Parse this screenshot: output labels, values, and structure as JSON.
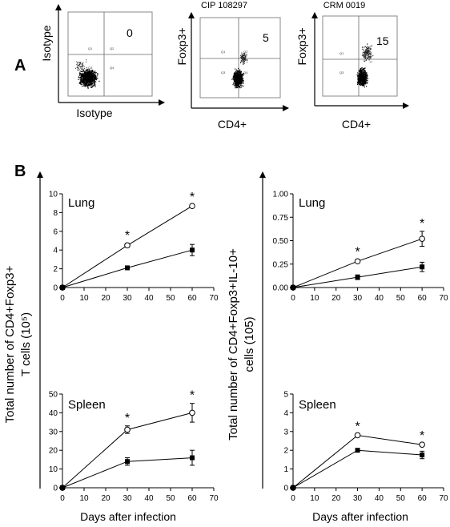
{
  "panel_a": {
    "letter": "A",
    "plots": [
      {
        "title": "",
        "xlabel": "Isotype",
        "ylabel": "Isotype",
        "value": "0",
        "quadrants": [
          "Q1",
          "Q2",
          "Q3",
          "Q4"
        ]
      },
      {
        "title": "CIP 108297",
        "xlabel": "CD4+",
        "ylabel": "Foxp3+",
        "value": "5",
        "quadrants": [
          "Q1",
          "Q2",
          "Q3",
          "Q4"
        ]
      },
      {
        "title": "CRM 0019",
        "xlabel": "CD4+",
        "ylabel": "Foxp3+",
        "value": "15",
        "quadrants": [
          "Q1",
          "Q2",
          "Q3",
          "Q4"
        ]
      }
    ]
  },
  "panel_b": {
    "letter": "B",
    "left_ylabel_line1": "Total number of CD4+Foxp3+",
    "left_ylabel_line2": "T cells (10⁵)",
    "right_ylabel_line1": "Total number of CD4+Foxp3+IL-10+",
    "right_ylabel_line2": "cells (105)",
    "xlabel": "Days after infection"
  },
  "chart_data": [
    {
      "type": "line",
      "title": "Lung",
      "x": [
        0,
        30,
        60
      ],
      "xticks": [
        0,
        10,
        20,
        30,
        40,
        50,
        60,
        70
      ],
      "xlim": [
        0,
        70
      ],
      "yticks": [
        0,
        2,
        4,
        6,
        8,
        10
      ],
      "ytick_labels": [
        "0",
        "2",
        "4",
        "6",
        "8",
        "10"
      ],
      "ylim": [
        0,
        10
      ],
      "series": [
        {
          "marker": "open-circle",
          "values": [
            0,
            4.5,
            8.7
          ],
          "errors": [
            0,
            0.2,
            0.12
          ]
        },
        {
          "marker": "filled-square",
          "values": [
            0,
            2.1,
            4.0
          ],
          "errors": [
            0,
            0.15,
            0.6
          ]
        }
      ],
      "annotations": [
        {
          "text": "*",
          "x": 30
        },
        {
          "text": "*",
          "x": 60
        }
      ]
    },
    {
      "type": "line",
      "title": "Lung",
      "x": [
        0,
        30,
        60
      ],
      "xticks": [
        0,
        10,
        20,
        30,
        40,
        50,
        60,
        70
      ],
      "xlim": [
        0,
        70
      ],
      "yticks": [
        0,
        0.25,
        0.5,
        0.75,
        1.0
      ],
      "ytick_labels": [
        "0.00",
        "0.25",
        "0.50",
        "0.75",
        "1.00"
      ],
      "ylim": [
        0,
        1.0
      ],
      "series": [
        {
          "marker": "open-circle",
          "values": [
            0,
            0.28,
            0.52
          ],
          "errors": [
            0,
            0.015,
            0.08
          ]
        },
        {
          "marker": "filled-square",
          "values": [
            0,
            0.11,
            0.22
          ],
          "errors": [
            0,
            0.025,
            0.05
          ]
        }
      ],
      "annotations": [
        {
          "text": "*",
          "x": 30
        },
        {
          "text": "*",
          "x": 60
        }
      ]
    },
    {
      "type": "line",
      "title": "Spleen",
      "x": [
        0,
        30,
        60
      ],
      "xticks": [
        0,
        10,
        20,
        30,
        40,
        50,
        60,
        70
      ],
      "xlim": [
        0,
        70
      ],
      "yticks": [
        0,
        10,
        20,
        30,
        40,
        50
      ],
      "ytick_labels": [
        "0",
        "10",
        "20",
        "30",
        "40",
        "50"
      ],
      "ylim": [
        0,
        50
      ],
      "series": [
        {
          "marker": "open-circle",
          "values": [
            0,
            31,
            40
          ],
          "errors": [
            0,
            2,
            5
          ]
        },
        {
          "marker": "filled-square",
          "values": [
            0,
            14,
            16
          ],
          "errors": [
            0,
            2,
            4
          ]
        }
      ],
      "annotations": [
        {
          "text": "*",
          "x": 30
        },
        {
          "text": "*",
          "x": 60
        }
      ]
    },
    {
      "type": "line",
      "title": "Spleen",
      "x": [
        0,
        30,
        60
      ],
      "xticks": [
        0,
        10,
        20,
        30,
        40,
        50,
        60,
        70
      ],
      "xlim": [
        0,
        70
      ],
      "yticks": [
        0,
        1,
        2,
        3,
        4,
        5
      ],
      "ytick_labels": [
        "0",
        "1",
        "2",
        "3",
        "4",
        "5"
      ],
      "ylim": [
        0,
        5
      ],
      "series": [
        {
          "marker": "open-circle",
          "values": [
            0,
            2.8,
            2.3
          ],
          "errors": [
            0,
            0.05,
            0.05
          ]
        },
        {
          "marker": "filled-square",
          "values": [
            0,
            2.0,
            1.75
          ],
          "errors": [
            0,
            0.05,
            0.2
          ]
        }
      ],
      "annotations": [
        {
          "text": "*",
          "x": 30
        },
        {
          "text": "*",
          "x": 60
        }
      ]
    }
  ]
}
